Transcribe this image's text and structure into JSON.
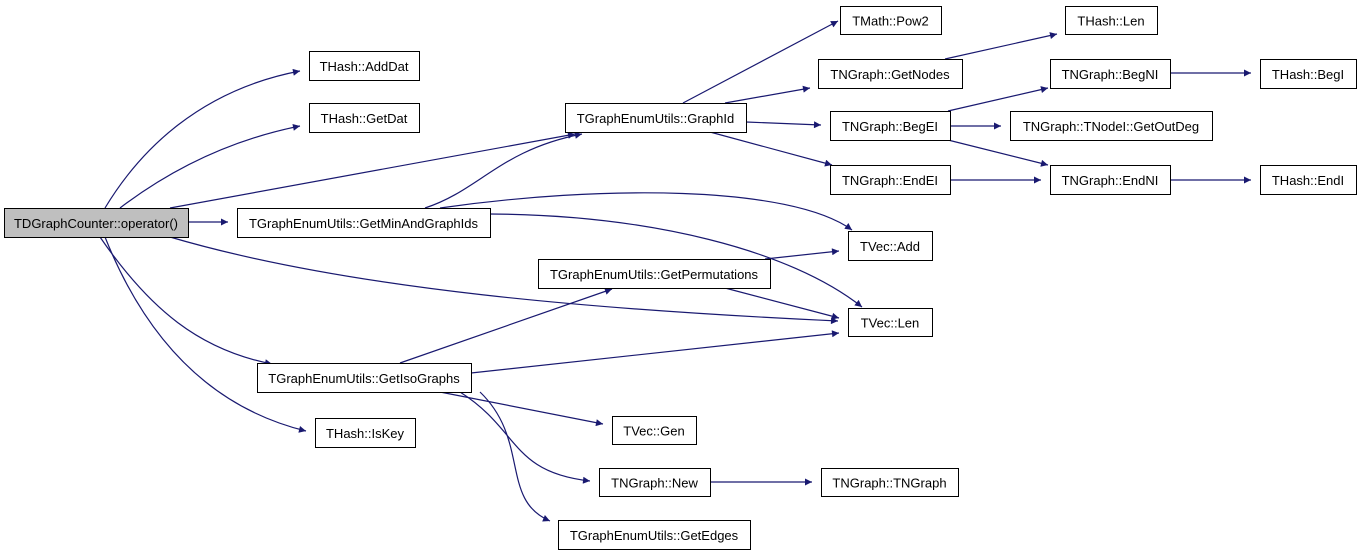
{
  "diagram": {
    "type": "call-graph",
    "colors": {
      "edge": "#191970",
      "root_fill": "#bfbfbf",
      "node_fill": "#ffffff",
      "border": "#000000"
    },
    "root": "root",
    "nodes": [
      {
        "id": "root",
        "label": "TDGraphCounter::operator()"
      },
      {
        "id": "adddat",
        "label": "THash::AddDat"
      },
      {
        "id": "getdat",
        "label": "THash::GetDat"
      },
      {
        "id": "graphid",
        "label": "TGraphEnumUtils::GraphId"
      },
      {
        "id": "getmin",
        "label": "TGraphEnumUtils::GetMinAndGraphIds"
      },
      {
        "id": "pow2",
        "label": "TMath::Pow2"
      },
      {
        "id": "hlen",
        "label": "THash::Len"
      },
      {
        "id": "getnodes",
        "label": "TNGraph::GetNodes"
      },
      {
        "id": "begni",
        "label": "TNGraph::BegNI"
      },
      {
        "id": "begi",
        "label": "THash::BegI"
      },
      {
        "id": "begei",
        "label": "TNGraph::BegEI"
      },
      {
        "id": "outdeg",
        "label": "TNGraph::TNodeI::GetOutDeg"
      },
      {
        "id": "endei",
        "label": "TNGraph::EndEI"
      },
      {
        "id": "endni",
        "label": "TNGraph::EndNI"
      },
      {
        "id": "endi",
        "label": "THash::EndI"
      },
      {
        "id": "vadd",
        "label": "TVec::Add"
      },
      {
        "id": "getperm",
        "label": "TGraphEnumUtils::GetPermutations"
      },
      {
        "id": "vlen",
        "label": "TVec::Len"
      },
      {
        "id": "getiso",
        "label": "TGraphEnumUtils::GetIsoGraphs"
      },
      {
        "id": "iskey",
        "label": "THash::IsKey"
      },
      {
        "id": "vgen",
        "label": "TVec::Gen"
      },
      {
        "id": "new",
        "label": "TNGraph::New"
      },
      {
        "id": "tngraph",
        "label": "TNGraph::TNGraph"
      },
      {
        "id": "getedges",
        "label": "TGraphEnumUtils::GetEdges"
      }
    ],
    "edges": [
      [
        "root",
        "adddat"
      ],
      [
        "root",
        "getdat"
      ],
      [
        "root",
        "graphid"
      ],
      [
        "root",
        "getmin"
      ],
      [
        "root",
        "vlen"
      ],
      [
        "root",
        "getiso"
      ],
      [
        "root",
        "iskey"
      ],
      [
        "getmin",
        "graphid"
      ],
      [
        "getmin",
        "vadd"
      ],
      [
        "getmin",
        "vlen"
      ],
      [
        "graphid",
        "pow2"
      ],
      [
        "graphid",
        "getnodes"
      ],
      [
        "graphid",
        "begei"
      ],
      [
        "graphid",
        "endei"
      ],
      [
        "getnodes",
        "hlen"
      ],
      [
        "begei",
        "begni"
      ],
      [
        "begei",
        "outdeg"
      ],
      [
        "begei",
        "endni"
      ],
      [
        "endei",
        "endni"
      ],
      [
        "begni",
        "begi"
      ],
      [
        "endni",
        "endi"
      ],
      [
        "getperm",
        "vadd"
      ],
      [
        "getperm",
        "vlen"
      ],
      [
        "getiso",
        "getperm"
      ],
      [
        "getiso",
        "vlen"
      ],
      [
        "getiso",
        "vgen"
      ],
      [
        "getiso",
        "new"
      ],
      [
        "getiso",
        "getedges"
      ],
      [
        "new",
        "tngraph"
      ]
    ]
  }
}
